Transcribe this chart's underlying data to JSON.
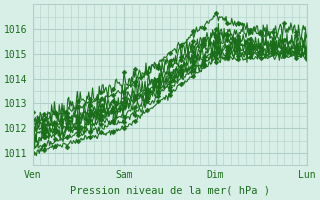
{
  "bg_color": "#d8efe8",
  "grid_color": "#b0d0c8",
  "line_color": "#1a6e1a",
  "marker_color": "#1a6e1a",
  "xlabel": "Pression niveau de la mer( hPa )",
  "xtick_labels": [
    "Ven",
    "Sam",
    "Dim",
    "Lun"
  ],
  "xtick_positions": [
    0,
    96,
    192,
    288
  ],
  "ylim": [
    1010.5,
    1017
  ],
  "yticks": [
    1011,
    1012,
    1013,
    1014,
    1015,
    1016
  ],
  "n": 289,
  "line_width": 0.8,
  "marker_size": 2.5
}
